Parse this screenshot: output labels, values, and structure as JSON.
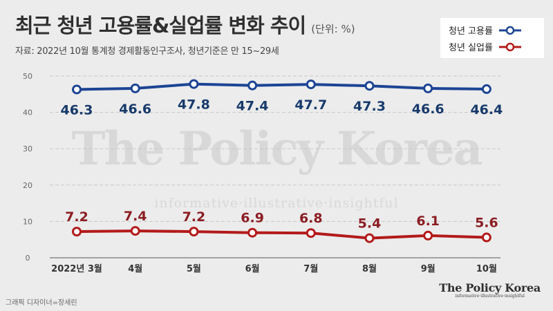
{
  "title": "최근 청년 고용률&실업률 변화 추이",
  "unit_note": "(단위: %)",
  "source_note": "자료: 2022년 10월 통계청 경제활동인구조사, 청년기준은 만 15~29세",
  "credit": "그래픽 디자이너=장세린",
  "brand": {
    "name": "The Policy Korea",
    "tagline": "informative·illustrative·insightful"
  },
  "watermark": {
    "name": "The Policy Korea",
    "tagline": "informative·illustrative·insightful"
  },
  "legend": {
    "employment": "청년 고용률",
    "unemployment": "청년 실업률"
  },
  "colors": {
    "employment": "#1c4494",
    "unemployment": "#b31a1a",
    "employment_label": "#173a6b",
    "unemployment_label": "#8b1d22",
    "grid": "#c8c8c8",
    "axis": "#8a8a8a",
    "tick_text": "#666666",
    "category_text": "#333333"
  },
  "chart_data": {
    "type": "line",
    "title": "최근 청년 고용률&실업률 변화 추이",
    "xlabel": "",
    "ylabel": "",
    "categories": [
      "2022년 3월",
      "4월",
      "5월",
      "6월",
      "7월",
      "8월",
      "9월",
      "10월"
    ],
    "series": [
      {
        "name": "청년 고용률",
        "values": [
          46.3,
          46.6,
          47.8,
          47.4,
          47.7,
          47.3,
          46.6,
          46.4
        ]
      },
      {
        "name": "청년 실업률",
        "values": [
          7.2,
          7.4,
          7.2,
          6.9,
          6.8,
          5.4,
          6.1,
          5.6
        ]
      }
    ],
    "yticks": [
      0,
      10,
      20,
      30,
      40,
      50
    ],
    "ylim": [
      0,
      50
    ],
    "grid": true,
    "legend_position": "top-right"
  }
}
